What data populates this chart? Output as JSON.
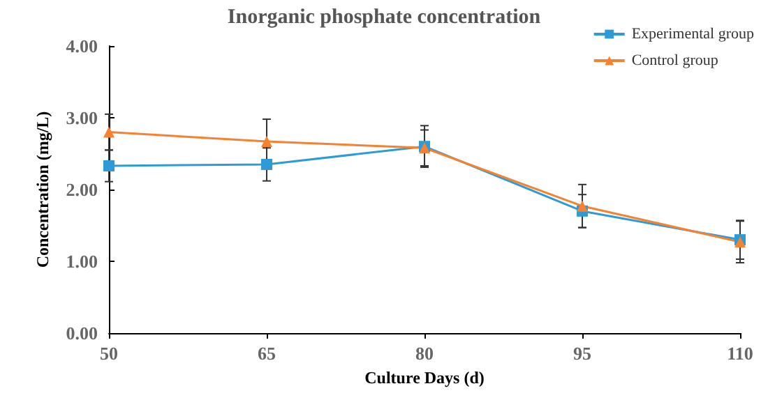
{
  "chart_data": {
    "type": "line",
    "title": "Inorganic phosphate concentration",
    "xlabel": "Culture Days (d)",
    "ylabel": "Concentration (mg/L)",
    "x": [
      50,
      65,
      80,
      95,
      110
    ],
    "series": [
      {
        "name": "Experimental group",
        "color": "#2e9bd6",
        "marker": "square",
        "values": [
          2.33,
          2.35,
          2.6,
          1.7,
          1.3
        ],
        "errors": [
          0.22,
          0.23,
          0.29,
          0.23,
          0.27
        ]
      },
      {
        "name": "Control group",
        "color": "#f58231",
        "marker": "triangle",
        "values": [
          2.8,
          2.67,
          2.58,
          1.77,
          1.27
        ],
        "errors": [
          0.25,
          0.31,
          0.25,
          0.3,
          0.29
        ]
      }
    ],
    "xlim": [
      50,
      110
    ],
    "xticks": [
      50,
      65,
      80,
      95,
      110
    ],
    "ylim": [
      0,
      4
    ],
    "yticks": [
      {
        "value": 0,
        "label": "0.00"
      },
      {
        "value": 1,
        "label": "1.00"
      },
      {
        "value": 2,
        "label": "2.00"
      },
      {
        "value": 3,
        "label": "3.00"
      },
      {
        "value": 4,
        "label": "4.00"
      }
    ],
    "grid": false,
    "legend": "top right"
  }
}
